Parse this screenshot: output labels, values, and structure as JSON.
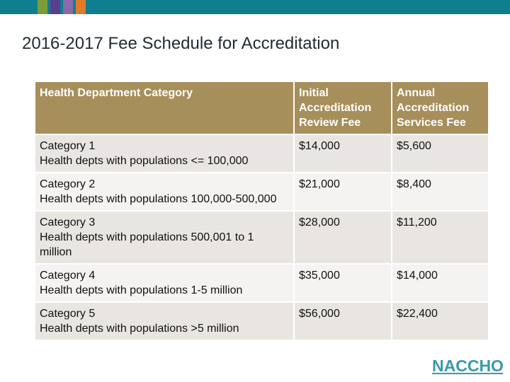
{
  "colors": {
    "top_bar": "#0f7f8f",
    "swatches": [
      "#7a9d3a",
      "#5a3f8e",
      "#8a6aa8",
      "#e07b2a"
    ],
    "header_bg": "#a78f5b",
    "row_odd": "#e9e6e2",
    "row_even": "#f5f3f1",
    "logo": "#3a9aa8"
  },
  "title": "2016-2017 Fee Schedule for Accreditation",
  "table": {
    "headers": [
      "Health Department Category",
      "Initial Accreditation Review Fee",
      "Annual Accreditation Services Fee"
    ],
    "rows": [
      {
        "category": "Category 1",
        "description": "Health depts with populations <= 100,000",
        "initial_fee": "$14,000",
        "annual_fee": "$5,600"
      },
      {
        "category": "Category 2",
        "description": "Health depts with populations 100,000-500,000",
        "initial_fee": "$21,000",
        "annual_fee": "$8,400"
      },
      {
        "category": "Category 3",
        "description": "Health depts with populations 500,001 to 1 million",
        "initial_fee": "$28,000",
        "annual_fee": "$11,200"
      },
      {
        "category": "Category 4",
        "description": "Health depts with populations 1-5 million",
        "initial_fee": "$35,000",
        "annual_fee": "$14,000"
      },
      {
        "category": "Category 5",
        "description": "Health depts with populations >5 million",
        "initial_fee": "$56,000",
        "annual_fee": "$22,400"
      }
    ]
  },
  "logo": {
    "text": "NACCHO"
  }
}
